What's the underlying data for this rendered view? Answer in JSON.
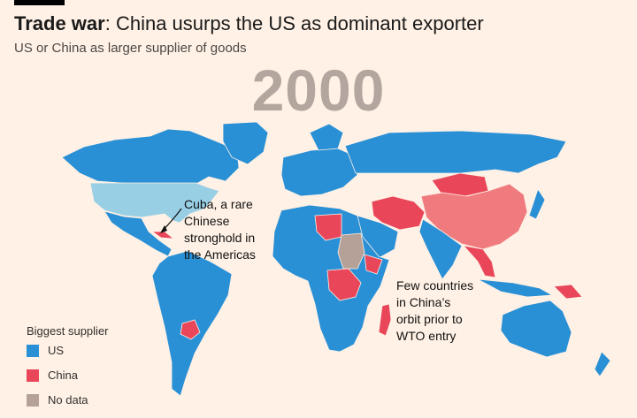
{
  "header": {
    "title_bold": "Trade war",
    "title_rest": ": China usurps the US as dominant exporter",
    "subtitle": "US or China as larger supplier of goods"
  },
  "map": {
    "year": "2000",
    "colors": {
      "us": "#2990d6",
      "us_light": "#99cfe4",
      "china": "#e9465a",
      "china_light": "#f07b7e",
      "no_data": "#b5a198"
    }
  },
  "annotations": {
    "cuba": [
      "Cuba, a rare",
      "Chinese",
      "stronghold in",
      "the Americas"
    ],
    "wto": [
      "Few countries",
      "in China’s",
      "orbit prior to",
      "WTO entry"
    ]
  },
  "legend": {
    "title": "Biggest supplier",
    "items": [
      {
        "label": "US",
        "color": "#2990d6"
      },
      {
        "label": "China",
        "color": "#e9465a"
      },
      {
        "label": "No data",
        "color": "#b5a198"
      }
    ]
  }
}
